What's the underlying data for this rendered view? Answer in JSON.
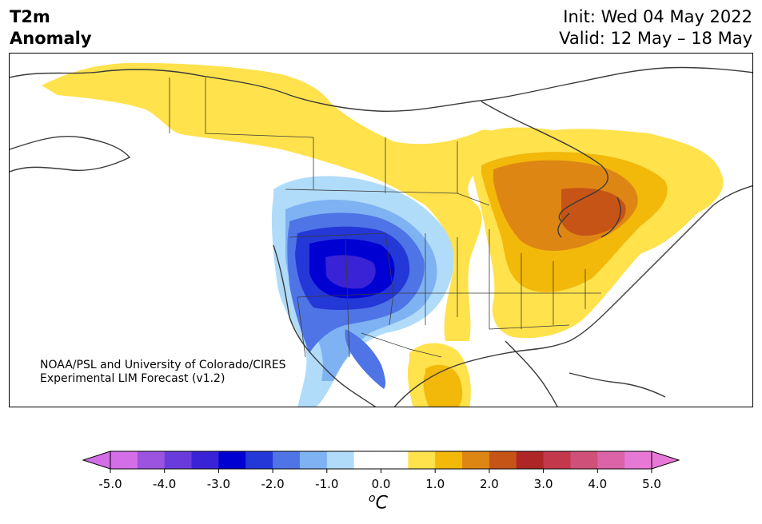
{
  "title": {
    "left_line1": "T2m",
    "left_line2": "Anomaly",
    "init": "Init: Wed 04 May 2022",
    "valid": "Valid: 12 May – 18 May"
  },
  "credit": {
    "line1": "NOAA/PSL and University of Colorado/CIRES",
    "line2": "Experimental LIM Forecast (v1.2)"
  },
  "colorbar": {
    "unit_base": "C",
    "unit_sup": "o",
    "ticks": [
      "-5.0",
      "-4.0",
      "-3.0",
      "-2.0",
      "-1.0",
      "0.0",
      "1.0",
      "2.0",
      "3.0",
      "4.0",
      "5.0"
    ],
    "colors": [
      "#d46de8",
      "#9b53e0",
      "#6a3bdc",
      "#3a22d6",
      "#0000d2",
      "#2438d8",
      "#4f74e6",
      "#7fb2f2",
      "#b0dcfa",
      "#ffffff",
      "#ffffff",
      "#ffe24c",
      "#f2b80a",
      "#de8614",
      "#c65416",
      "#ae2626",
      "#c4384c",
      "#cf5078",
      "#dc63a8",
      "#e878d6"
    ],
    "extend_low": "#d46de8",
    "extend_high": "#e878d6"
  },
  "legend_colors": {
    "cold_strong": "#0000d2",
    "cold": "#2438d8",
    "cool": "#4f74e6",
    "cool_light": "#7fb2f2",
    "cool_pale": "#b0dcfa",
    "deep_core": "#3a22d6",
    "warm_pale": "#ffe24c",
    "warm": "#f2b80a",
    "warm_strong": "#de8614",
    "hot": "#c65416",
    "coast": "#3a3a3a"
  }
}
